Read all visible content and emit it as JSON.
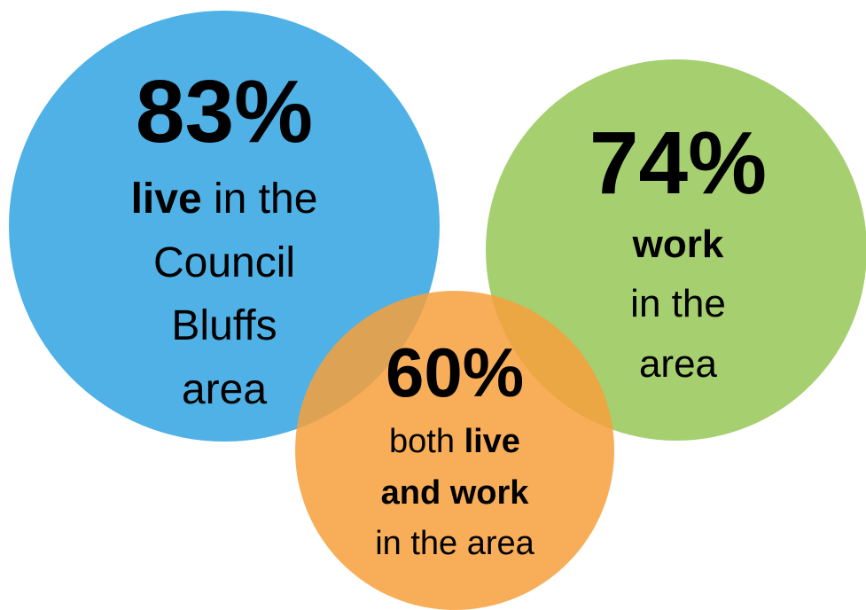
{
  "circles": [
    {
      "color": "#4fb1e5",
      "percent": "83%",
      "lines": [
        [
          {
            "text": "live",
            "bold": true
          },
          {
            "text": " in the",
            "bold": false
          }
        ],
        [
          {
            "text": "Council",
            "bold": false
          }
        ],
        [
          {
            "text": "Bluffs",
            "bold": false
          }
        ],
        [
          {
            "text": "area",
            "bold": false
          }
        ]
      ]
    },
    {
      "color": "#a6cf6f",
      "percent": "74%",
      "lines": [
        [
          {
            "text": "work",
            "bold": true
          }
        ],
        [
          {
            "text": "in the",
            "bold": false
          }
        ],
        [
          {
            "text": "area",
            "bold": false
          }
        ]
      ]
    },
    {
      "color": "#f7a03c",
      "percent": "60%",
      "lines": [
        [
          {
            "text": "both ",
            "bold": false
          },
          {
            "text": "live",
            "bold": true
          }
        ],
        [
          {
            "text": "and work",
            "bold": true
          }
        ],
        [
          {
            "text": "in the area",
            "bold": false
          }
        ]
      ]
    }
  ]
}
